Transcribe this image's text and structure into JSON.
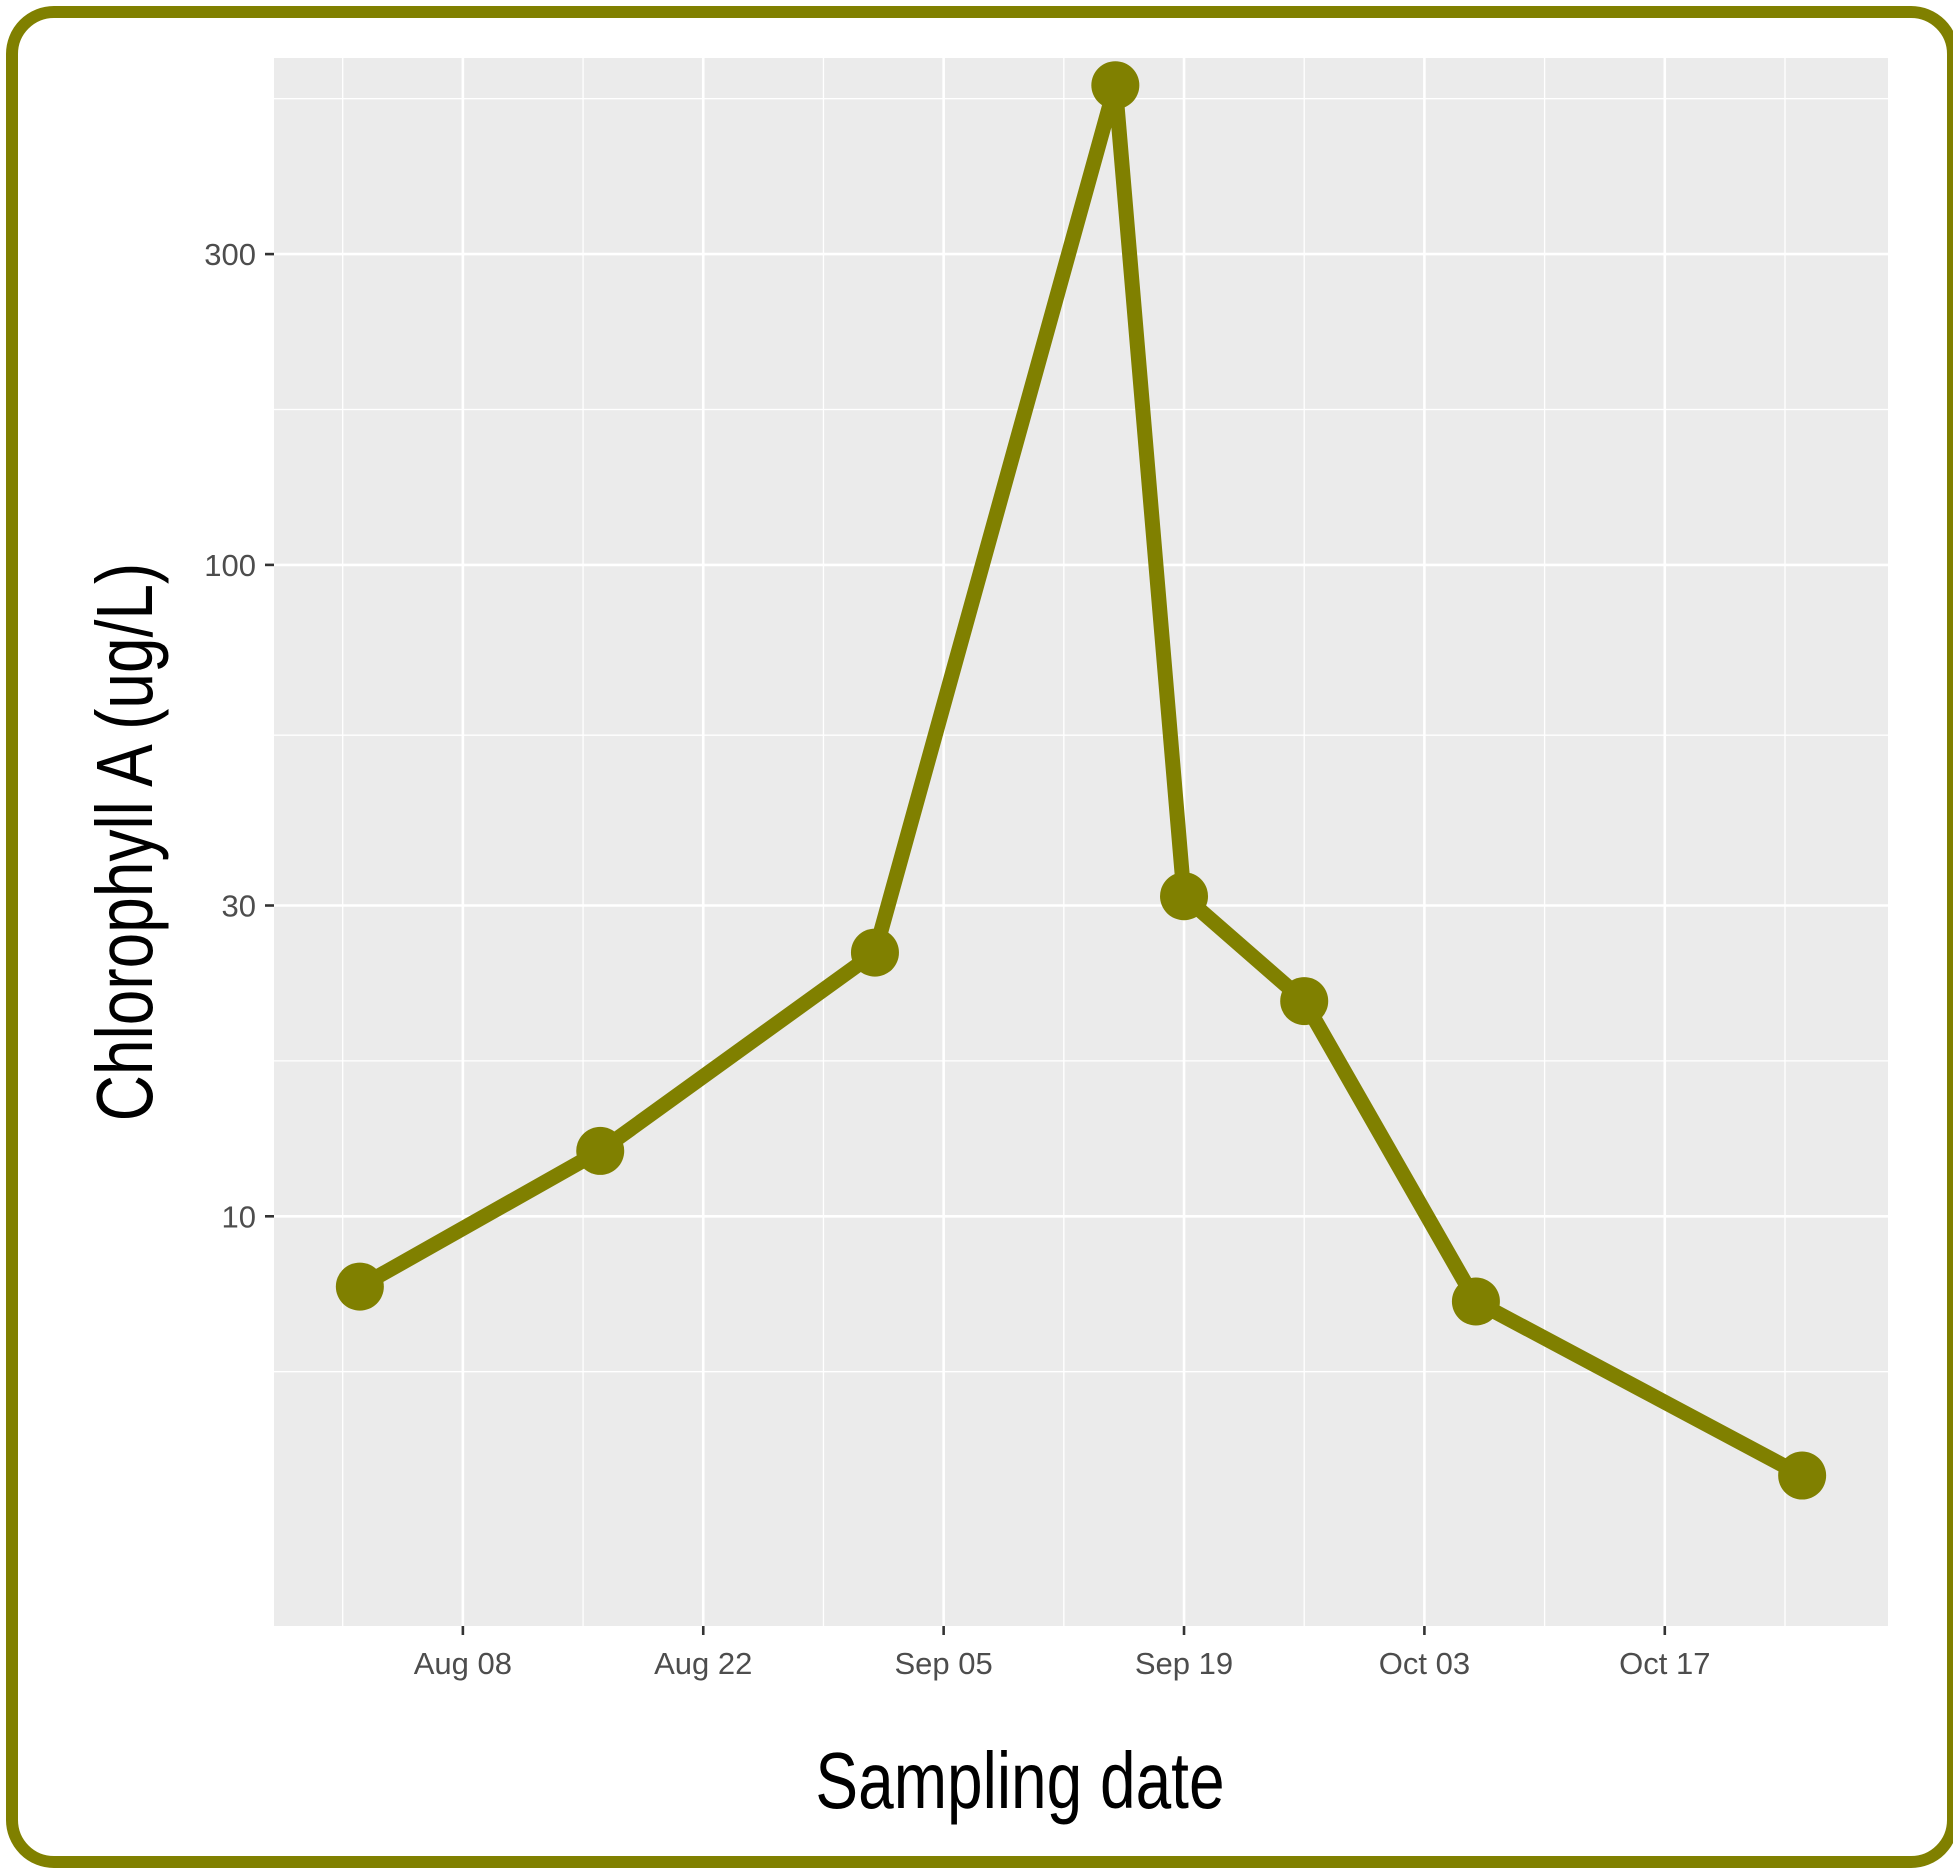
{
  "chart_data": {
    "type": "line",
    "title": "",
    "xlabel": "Sampling date",
    "ylabel": "Chlorophyll A (ug/L)",
    "y_scale": "log10",
    "ylim": [
      2.35,
      600
    ],
    "xlim": [
      "2020-07-28",
      "2020-10-30"
    ],
    "x_ticks": [
      "Aug 08",
      "Aug 22",
      "Sep 05",
      "Sep 19",
      "Oct 03",
      "Oct 17"
    ],
    "x_tick_dates": [
      "2020-08-08",
      "2020-08-22",
      "2020-09-05",
      "2020-09-19",
      "2020-10-03",
      "2020-10-17"
    ],
    "y_ticks": [
      10,
      30,
      100,
      300
    ],
    "grid": true,
    "legend": "none",
    "colors": {
      "series": "#808000",
      "panel": "#ebebeb",
      "grid": "#ffffff",
      "frame": "#808000"
    },
    "series": [
      {
        "x": [
          "2020-08-02",
          "2020-08-16",
          "2020-09-01",
          "2020-09-15",
          "2020-09-19",
          "2020-09-26",
          "2020-10-06",
          "2020-10-25"
        ],
        "y": [
          7.8,
          12.6,
          25.4,
          545,
          31,
          21.4,
          7.4,
          4.0
        ]
      }
    ]
  }
}
